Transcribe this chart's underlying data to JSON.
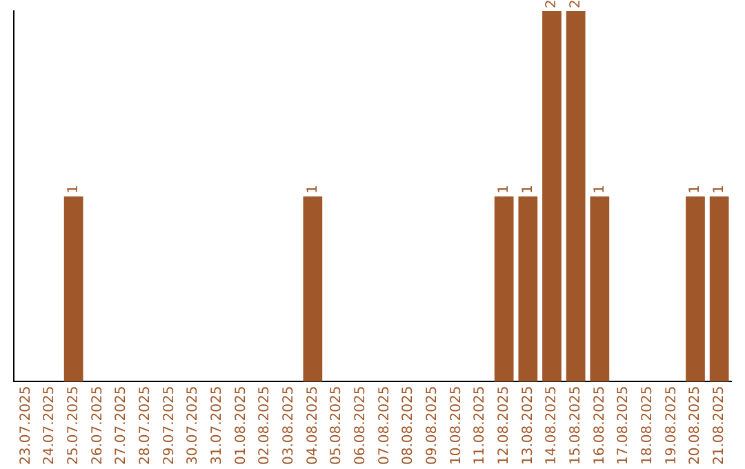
{
  "chart_data": {
    "type": "bar",
    "categories": [
      "23.07.2025",
      "24.07.2025",
      "25.07.2025",
      "26.07.2025",
      "27.07.2025",
      "28.07.2025",
      "29.07.2025",
      "30.07.2025",
      "31.07.2025",
      "01.08.2025",
      "02.08.2025",
      "03.08.2025",
      "04.08.2025",
      "05.08.2025",
      "06.08.2025",
      "07.08.2025",
      "08.08.2025",
      "09.08.2025",
      "10.08.2025",
      "11.08.2025",
      "12.08.2025",
      "13.08.2025",
      "14.08.2025",
      "15.08.2025",
      "16.08.2025",
      "17.08.2025",
      "18.08.2025",
      "19.08.2025",
      "20.08.2025",
      "21.08.2025"
    ],
    "values": [
      0,
      0,
      1,
      0,
      0,
      0,
      0,
      0,
      0,
      0,
      0,
      0,
      1,
      0,
      0,
      0,
      0,
      0,
      0,
      0,
      1,
      1,
      2,
      2,
      1,
      0,
      0,
      0,
      1,
      1
    ],
    "value_labels": [
      null,
      null,
      "1",
      null,
      null,
      null,
      null,
      null,
      null,
      null,
      null,
      null,
      "1",
      null,
      null,
      null,
      null,
      null,
      null,
      null,
      "1",
      "1",
      "2",
      "2",
      "1",
      null,
      null,
      null,
      "1",
      "1"
    ],
    "color": "#a0582a",
    "grid": false,
    "legend": false
  }
}
